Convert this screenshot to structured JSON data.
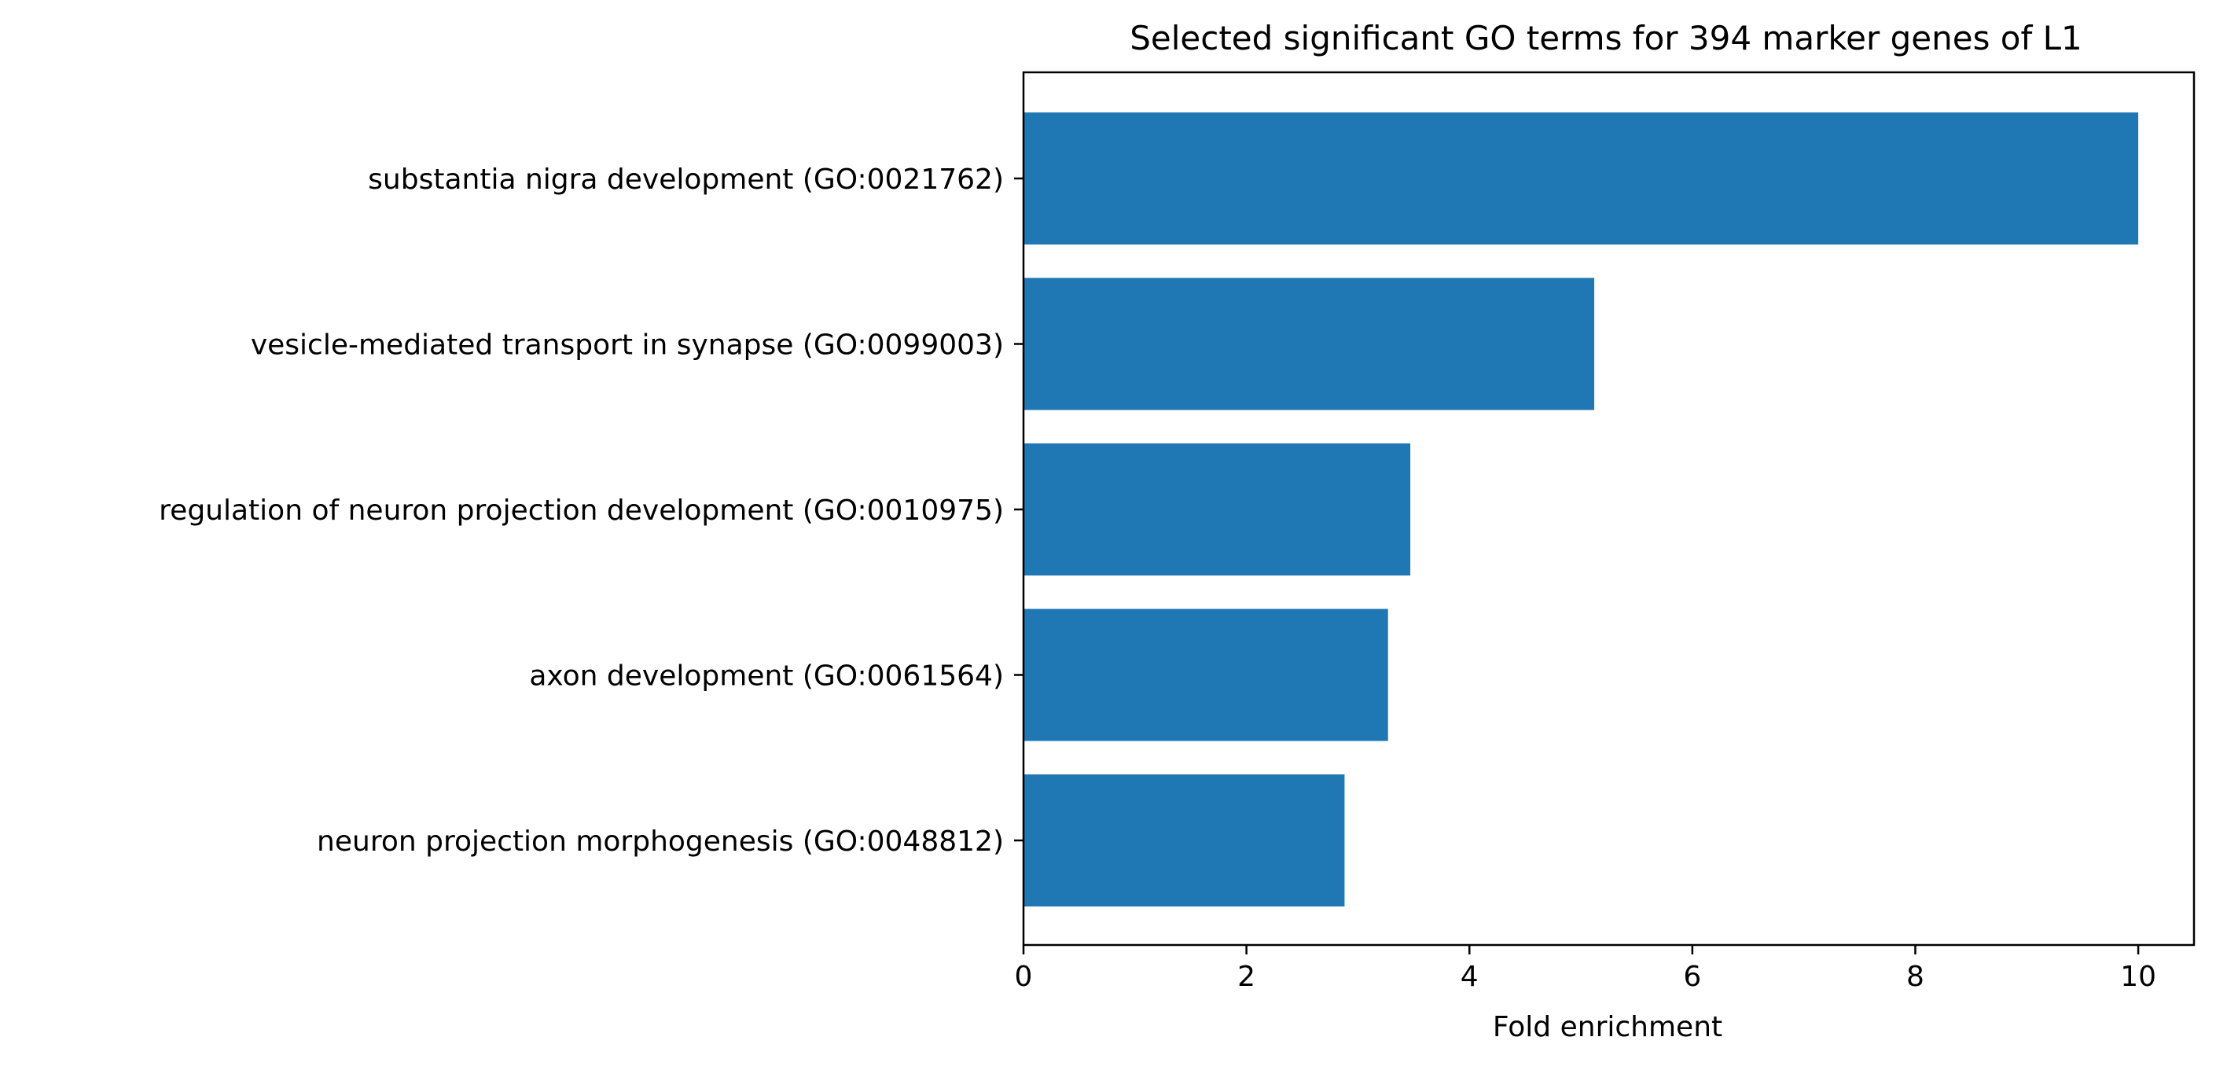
{
  "chart_data": {
    "type": "bar",
    "orientation": "horizontal",
    "title": "Selected significant GO terms for 394 marker genes of L1",
    "xlabel": "Fold enrichment",
    "ylabel": "",
    "categories": [
      "substantia nigra development (GO:0021762)",
      "vesicle-mediated transport in synapse (GO:0099003)",
      "regulation of neuron projection development (GO:0010975)",
      "axon development (GO:0061564)",
      "neuron projection morphogenesis (GO:0048812)"
    ],
    "values": [
      10.0,
      5.12,
      3.47,
      3.27,
      2.88
    ],
    "xlim": [
      0,
      10.5
    ],
    "xticks": [
      0,
      2,
      4,
      6,
      8,
      10
    ],
    "grid": false,
    "legend": "none",
    "bar_color": "#1f77b4"
  }
}
